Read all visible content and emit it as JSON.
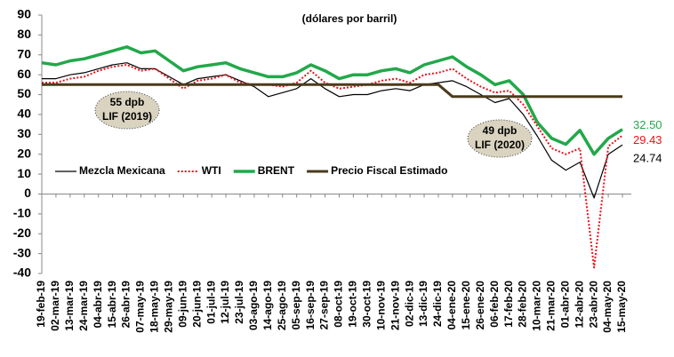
{
  "chart_data": {
    "type": "line",
    "subtitle": "(dólares por barril)",
    "categories": [
      "19-feb-19",
      "02-mar-19",
      "13-mar-19",
      "24-mar-19",
      "04-abr-19",
      "15-abr-19",
      "26-abr-19",
      "07-may-19",
      "18-may-19",
      "29-may-19",
      "09-jun-19",
      "20-jun-19",
      "01-jul-19",
      "12-jul-19",
      "23-jul-19",
      "03-ago-19",
      "14-ago-19",
      "25-ago-19",
      "05-sep-19",
      "16-sep-19",
      "27-sep-19",
      "08-oct-19",
      "19-oct-19",
      "30-oct-19",
      "10-nov-19",
      "21-nov-19",
      "02-dic-19",
      "13-dic-19",
      "24-dic-19",
      "04-ene-20",
      "15-ene-20",
      "26-ene-20",
      "06-feb-20",
      "17-feb-20",
      "28-feb-20",
      "10-mar-20",
      "21-mar-20",
      "01-abr-20",
      "12-abr-20",
      "23-abr-20",
      "04-may-20",
      "15-may-20"
    ],
    "series": [
      {
        "name": "Mezcla Mexicana",
        "color": "#000000",
        "style": "solid",
        "width": 1.2,
        "values": [
          58,
          58,
          60,
          61,
          63,
          65,
          66,
          63,
          63,
          59,
          55,
          58,
          59,
          60,
          57,
          54,
          49,
          51,
          53,
          58,
          53,
          49,
          50,
          50,
          52,
          53,
          52,
          55,
          56,
          57,
          54,
          50,
          46,
          48,
          40,
          29,
          17,
          12,
          16,
          -2,
          20,
          24.74
        ],
        "value_labels": [
          null,
          null,
          null,
          null,
          null,
          null,
          null,
          null,
          null,
          null,
          null,
          null,
          null,
          null,
          null,
          null,
          null,
          null,
          null,
          null,
          null,
          null,
          null,
          null,
          null,
          null,
          null,
          null,
          null,
          null,
          null,
          null,
          null,
          null,
          null,
          null,
          null,
          null,
          null,
          null,
          null,
          "24.74"
        ]
      },
      {
        "name": "WTI",
        "color": "#e8141b",
        "style": "dotted",
        "width": 2,
        "values": [
          56,
          56,
          58,
          59,
          62,
          64,
          65,
          62,
          63,
          58,
          53,
          57,
          58,
          60,
          56,
          55,
          55,
          54,
          56,
          62,
          56,
          53,
          54,
          55,
          57,
          58,
          56,
          60,
          61,
          63,
          58,
          54,
          51,
          52,
          45,
          34,
          23,
          20,
          23,
          -37,
          24,
          29.43
        ],
        "value_labels": [
          null,
          null,
          null,
          null,
          null,
          null,
          null,
          null,
          null,
          null,
          null,
          null,
          null,
          null,
          null,
          null,
          null,
          null,
          null,
          null,
          null,
          null,
          null,
          null,
          null,
          null,
          null,
          null,
          null,
          null,
          null,
          null,
          null,
          null,
          null,
          null,
          null,
          null,
          null,
          null,
          null,
          "29.43"
        ]
      },
      {
        "name": "BRENT",
        "color": "#22a84a",
        "style": "solid",
        "width": 3.5,
        "values": [
          66,
          65,
          67,
          68,
          70,
          72,
          74,
          71,
          72,
          67,
          62,
          64,
          65,
          66,
          63,
          61,
          59,
          59,
          61,
          65,
          62,
          58,
          60,
          60,
          62,
          63,
          61,
          65,
          67,
          69,
          64,
          60,
          55,
          57,
          50,
          36,
          28,
          25,
          32,
          20,
          28,
          32.5
        ],
        "value_labels": [
          null,
          null,
          null,
          null,
          null,
          null,
          null,
          null,
          null,
          null,
          null,
          null,
          null,
          null,
          null,
          null,
          null,
          null,
          null,
          null,
          null,
          null,
          null,
          null,
          null,
          null,
          null,
          null,
          null,
          null,
          null,
          null,
          null,
          null,
          null,
          null,
          null,
          null,
          null,
          null,
          null,
          "32.50"
        ]
      },
      {
        "name": "Precio Fiscal Estimado",
        "color": "#4a3b1c",
        "style": "solid",
        "width": 3,
        "values": [
          55,
          55,
          55,
          55,
          55,
          55,
          55,
          55,
          55,
          55,
          55,
          55,
          55,
          55,
          55,
          55,
          55,
          55,
          55,
          55,
          55,
          55,
          55,
          55,
          55,
          55,
          55,
          55,
          55,
          49,
          49,
          49,
          49,
          49,
          49,
          49,
          49,
          49,
          49,
          49,
          49,
          49
        ]
      }
    ],
    "annotations": [
      [
        "55 dpb",
        "LIF (2019)"
      ],
      [
        "49 dpb",
        "LIF (2020)"
      ]
    ],
    "ylim": [
      -40,
      90
    ],
    "yticks": [
      -40,
      -30,
      -20,
      -10,
      0,
      10,
      20,
      30,
      40,
      50,
      60,
      70,
      80,
      90
    ]
  }
}
